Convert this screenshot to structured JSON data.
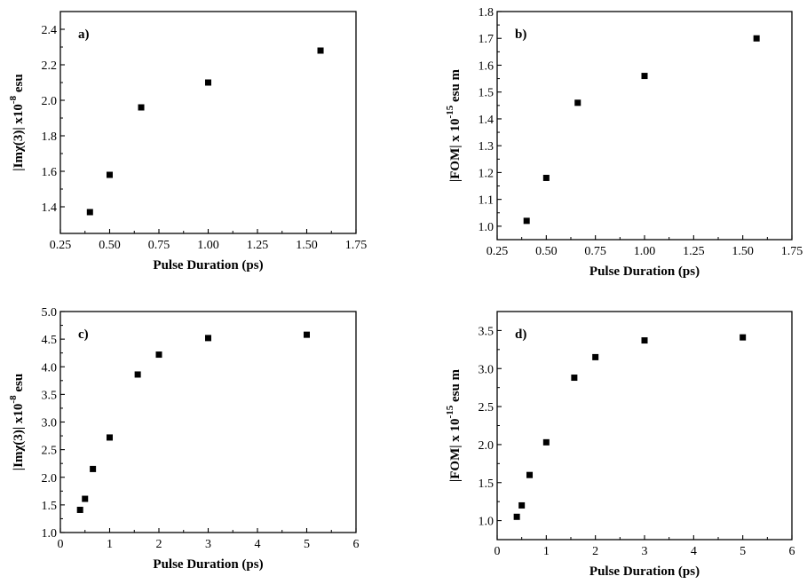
{
  "chart_data": [
    {
      "type": "scatter",
      "panel_label": "a)",
      "xlabel": "Pulse Duration (ps)",
      "ylabel": "|Imχ(3)|  x10",
      "ylabel_exp": "-8",
      "ylabel_unit": " esu",
      "xlim": [
        0.25,
        1.75
      ],
      "ylim": [
        1.25,
        2.5
      ],
      "xticks": [
        0.25,
        0.5,
        0.75,
        1.0,
        1.25,
        1.5,
        1.75
      ],
      "xtick_labels": [
        "0.25",
        "0.50",
        "0.75",
        "1.00",
        "1.25",
        "1.50",
        "1.75"
      ],
      "yticks": [
        1.4,
        1.6,
        1.8,
        2.0,
        2.2,
        2.4
      ],
      "ytick_labels": [
        "1.4",
        "1.6",
        "1.8",
        "2.0",
        "2.2",
        "2.4"
      ],
      "x": [
        0.4,
        0.5,
        0.66,
        1.0,
        1.57
      ],
      "y": [
        1.37,
        1.58,
        1.96,
        2.1,
        2.28
      ],
      "marker_color": "#000000"
    },
    {
      "type": "scatter",
      "panel_label": "b)",
      "xlabel": "Pulse Duration (ps)",
      "ylabel": "|FOM|  x 10",
      "ylabel_exp": "-15",
      "ylabel_unit": " esu m",
      "xlim": [
        0.25,
        1.75
      ],
      "ylim": [
        0.95,
        1.8
      ],
      "xticks": [
        0.25,
        0.5,
        0.75,
        1.0,
        1.25,
        1.5,
        1.75
      ],
      "xtick_labels": [
        "0.25",
        "0.50",
        "0.75",
        "1.00",
        "1.25",
        "1.50",
        "1.75"
      ],
      "yticks": [
        1.0,
        1.1,
        1.2,
        1.3,
        1.4,
        1.5,
        1.6,
        1.7,
        1.8
      ],
      "ytick_labels": [
        "1.0",
        "1.1",
        "1.2",
        "1.3",
        "1.4",
        "1.5",
        "1.6",
        "1.7",
        "1.8"
      ],
      "x": [
        0.4,
        0.5,
        0.66,
        1.0,
        1.57
      ],
      "y": [
        1.02,
        1.18,
        1.46,
        1.56,
        1.7
      ],
      "marker_color": "#000000"
    },
    {
      "type": "scatter",
      "panel_label": "c)",
      "xlabel": "Pulse Duration (ps)",
      "ylabel": "|Imχ(3)|  x10",
      "ylabel_exp": "-8",
      "ylabel_unit": " esu",
      "xlim": [
        0,
        6
      ],
      "ylim": [
        1.0,
        5.0
      ],
      "xticks": [
        0,
        1,
        2,
        3,
        4,
        5,
        6
      ],
      "xtick_labels": [
        "0",
        "1",
        "2",
        "3",
        "4",
        "5",
        "6"
      ],
      "yticks": [
        1.0,
        1.5,
        2.0,
        2.5,
        3.0,
        3.5,
        4.0,
        4.5,
        5.0
      ],
      "ytick_labels": [
        "1.0",
        "1.5",
        "2.0",
        "2.5",
        "3.0",
        "3.5",
        "4.0",
        "4.5",
        "5.0"
      ],
      "x": [
        0.4,
        0.5,
        0.66,
        1.0,
        1.57,
        2.0,
        3.0,
        5.0
      ],
      "y": [
        1.41,
        1.61,
        2.15,
        2.72,
        3.86,
        4.22,
        4.52,
        4.58
      ],
      "marker_color": "#000000"
    },
    {
      "type": "scatter",
      "panel_label": "d)",
      "xlabel": "Pulse Duration (ps)",
      "ylabel": "|FOM|  x 10",
      "ylabel_exp": "-15",
      "ylabel_unit": " esu m",
      "xlim": [
        0,
        6
      ],
      "ylim": [
        0.75,
        3.75
      ],
      "xticks": [
        0,
        1,
        2,
        3,
        4,
        5,
        6
      ],
      "xtick_labels": [
        "0",
        "1",
        "2",
        "3",
        "4",
        "5",
        "6"
      ],
      "yticks": [
        1.0,
        1.5,
        2.0,
        2.5,
        3.0,
        3.5
      ],
      "ytick_labels": [
        "1.0",
        "1.5",
        "2.0",
        "2.5",
        "3.0",
        "3.5"
      ],
      "x": [
        0.4,
        0.5,
        0.66,
        1.0,
        1.57,
        2.0,
        3.0,
        5.0
      ],
      "y": [
        1.05,
        1.2,
        1.6,
        2.03,
        2.88,
        3.15,
        3.37,
        3.41
      ],
      "marker_color": "#000000"
    }
  ]
}
